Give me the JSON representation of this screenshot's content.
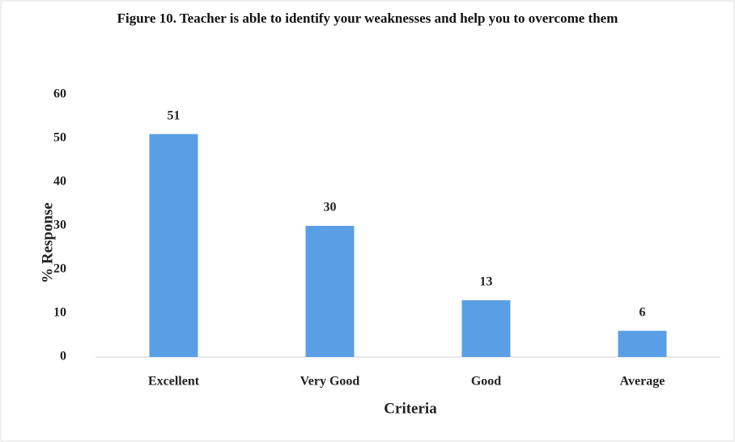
{
  "chart_data": {
    "type": "bar",
    "title": "Figure 10.  Teacher is able to identify your weaknesses and help you to overcome them",
    "categories": [
      "Excellent",
      "Very Good",
      "Good",
      "Average"
    ],
    "values": [
      51,
      30,
      13,
      6
    ],
    "color": "#5a9fe6",
    "xlabel": "Criteria",
    "ylabel": "% Response",
    "ylim": [
      0,
      60
    ],
    "yticks": [
      0,
      10,
      20,
      30,
      40,
      50,
      60
    ],
    "grid": false
  }
}
